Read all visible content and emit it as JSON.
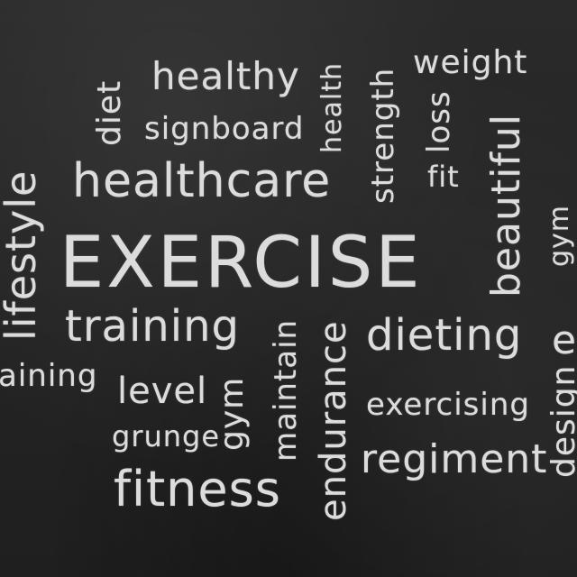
{
  "colors": {
    "board": "#252525",
    "chalk": "#dcdcdc"
  },
  "words": {
    "exercise": "EXERCISE",
    "healthcare": "healthcare",
    "healthy": "healthy",
    "signboard": "signboard",
    "diet": "diet",
    "health": "health",
    "strength": "strength",
    "weight": "weight",
    "loss": "loss",
    "fit": "fit",
    "beautiful": "beautiful",
    "lifestyle": "lifestyle",
    "training_main": "training",
    "training_partial": "aining",
    "level": "level",
    "grunge": "grunge",
    "gym_rot": "gym",
    "maintain": "maintain",
    "endurance": "endurance",
    "dieting": "dieting",
    "exercising": "exercising",
    "regiment": "regiment",
    "fitness": "fitness",
    "gym_right": "gym",
    "design": "design",
    "e_partial": "e"
  }
}
